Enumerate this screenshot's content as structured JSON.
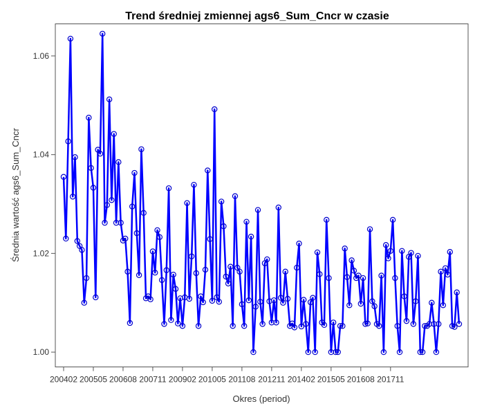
{
  "chart_data": {
    "type": "line",
    "title": "Trend średniej zmiennej ags6_Sum_Cncr w czasie",
    "xlabel": "Okres (period)",
    "ylabel": "Średnia wartość ags6_Sum_Cncr",
    "ylim": [
      0.997,
      1.0665
    ],
    "yticks": [
      1.0,
      1.02,
      1.04,
      1.06
    ],
    "ytick_labels": [
      "1.00",
      "1.02",
      "1.04",
      "1.06"
    ],
    "xtick_labels": [
      "200402",
      "200505",
      "200608",
      "200711",
      "200902",
      "201005",
      "201108",
      "201211",
      "201402",
      "201505",
      "201608",
      "201711"
    ],
    "grid": false,
    "line_color": "#0000ff",
    "marker": "open-circle",
    "series": [
      {
        "values": [
          1.0355,
          1.023,
          1.0427,
          1.0635,
          1.0315,
          1.0395,
          1.0225,
          1.0215,
          1.0207,
          1.01,
          1.015,
          1.0475,
          1.0373,
          1.0333,
          1.0111,
          1.041,
          1.0402,
          1.0645,
          1.0262,
          1.0298,
          1.0512,
          1.0308,
          1.0442,
          1.0262,
          1.0385,
          1.0262,
          1.0226,
          1.023,
          1.0163,
          1.0059,
          1.0295,
          1.0363,
          1.0241,
          1.0156,
          1.0411,
          1.0282,
          1.0109,
          1.0113,
          1.0107,
          1.0204,
          1.0161,
          1.0247,
          1.0233,
          1.0146,
          1.0057,
          1.0166,
          1.0332,
          1.0065,
          1.0157,
          1.0128,
          1.0058,
          1.0109,
          1.0053,
          1.0111,
          1.0302,
          1.0108,
          1.0194,
          1.0339,
          1.016,
          1.0053,
          1.0113,
          1.0101,
          1.0167,
          1.0368,
          1.0229,
          1.0104,
          1.0492,
          1.0111,
          1.0102,
          1.0305,
          1.0255,
          1.0153,
          1.0139,
          1.0173,
          1.0053,
          1.0316,
          1.0171,
          1.0163,
          1.0097,
          1.0053,
          1.0264,
          1.0105,
          1.0234,
          1.0,
          1.0092,
          1.0288,
          1.0102,
          1.0057,
          1.018,
          1.0188,
          1.0103,
          1.006,
          1.0105,
          1.006,
          1.0293,
          1.011,
          1.01,
          1.0163,
          1.0108,
          1.0053,
          1.0058,
          1.005,
          1.0171,
          1.022,
          1.0052,
          1.0106,
          1.0057,
          1.0,
          1.0101,
          1.011,
          1.0,
          1.0202,
          1.0158,
          1.006,
          1.0055,
          1.0268,
          1.015,
          1.0,
          1.006,
          1.0,
          1.0,
          1.0053,
          1.0053,
          1.021,
          1.0152,
          1.0095,
          1.0186,
          1.0165,
          1.015,
          1.0155,
          1.0098,
          1.015,
          1.0057,
          1.0058,
          1.0249,
          1.0103,
          1.0093,
          1.0057,
          1.0053,
          1.0155,
          1.0,
          1.0217,
          1.019,
          1.0205,
          1.0268,
          1.015,
          1.0053,
          1.0,
          1.0205,
          1.0113,
          1.0063,
          1.0193,
          1.0201,
          1.0057,
          1.0103,
          1.0195,
          1.0,
          1.0,
          1.0053,
          1.0053,
          1.0057,
          1.01,
          1.0057,
          1.0,
          1.0057,
          1.0163,
          1.0095,
          1.017,
          1.0157,
          1.0203,
          1.0053,
          1.0051,
          1.0121,
          1.0057
        ]
      }
    ]
  }
}
